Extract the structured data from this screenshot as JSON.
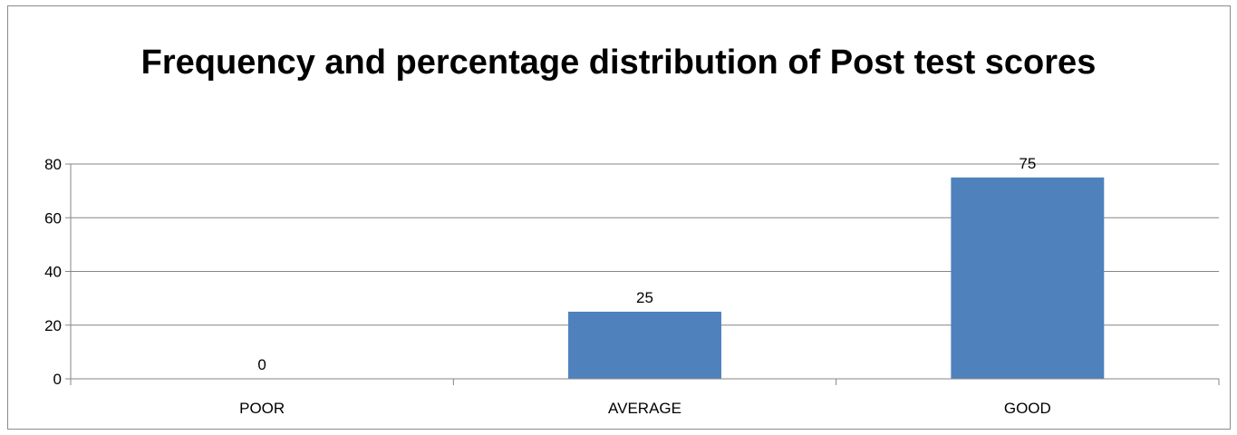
{
  "chart_data": {
    "type": "bar",
    "title": "Frequency and percentage distribution of Post test scores",
    "categories": [
      "POOR",
      "AVERAGE",
      "GOOD"
    ],
    "values": [
      0,
      25,
      75
    ],
    "data_labels": [
      "0",
      "25",
      "75"
    ],
    "ylim": [
      0,
      80
    ],
    "yticks": [
      "0",
      "20",
      "40",
      "60",
      "80"
    ],
    "xlabel": "",
    "ylabel": "",
    "grid": true,
    "legend": "none",
    "bar_color": "#4f81bd"
  }
}
